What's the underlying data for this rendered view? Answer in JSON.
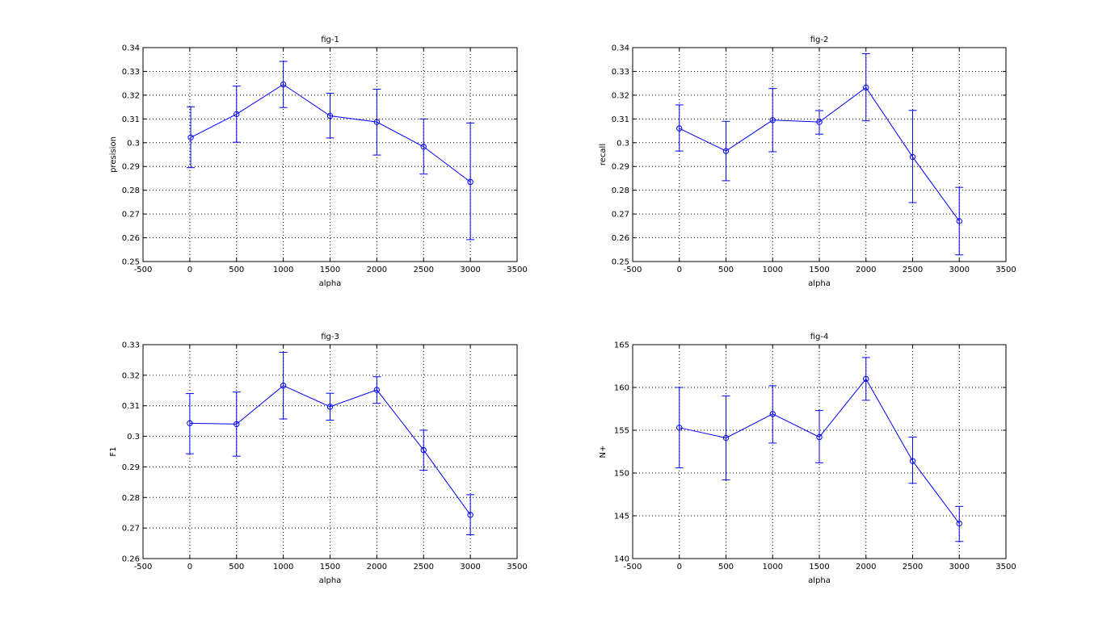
{
  "figure": {
    "line_color": "#0000ff",
    "axis_color": "#000000",
    "background": "#ffffff"
  },
  "chart_data": [
    {
      "type": "line",
      "title": "fig-1",
      "xlabel": "alpha",
      "ylabel": "presision",
      "xlim": [
        -500,
        3500
      ],
      "ylim": [
        0.25,
        0.34
      ],
      "xticks": [
        -500,
        0,
        500,
        1000,
        1500,
        2000,
        2500,
        3000,
        3500
      ],
      "yticks": [
        0.25,
        0.26,
        0.27,
        0.28,
        0.29,
        0.3,
        0.31,
        0.32,
        0.33,
        0.34
      ],
      "xticklabels": [
        "-500",
        "0",
        "500",
        "1000",
        "1500",
        "2000",
        "2500",
        "3000",
        "3500"
      ],
      "yticklabels": [
        "0.25",
        "0.26",
        "0.27",
        "0.28",
        "0.29",
        "0.3",
        "0.31",
        "0.32",
        "0.33",
        "0.34"
      ],
      "grid": true,
      "marker": "circle",
      "x": [
        10,
        500,
        1000,
        1500,
        2000,
        2500,
        3000
      ],
      "y": [
        0.3022,
        0.312,
        0.3245,
        0.3113,
        0.3087,
        0.2983,
        0.2835
      ],
      "err_low": [
        0.2895,
        0.3002,
        0.3148,
        0.302,
        0.2948,
        0.2868,
        0.2592
      ],
      "err_high": [
        0.3151,
        0.3238,
        0.3342,
        0.3208,
        0.3225,
        0.31,
        0.3083
      ]
    },
    {
      "type": "line",
      "title": "fig-2",
      "xlabel": "alpha",
      "ylabel": "recall",
      "xlim": [
        -500,
        3500
      ],
      "ylim": [
        0.25,
        0.34
      ],
      "xticks": [
        -500,
        0,
        500,
        1000,
        1500,
        2000,
        2500,
        3000,
        3500
      ],
      "yticks": [
        0.25,
        0.26,
        0.27,
        0.28,
        0.29,
        0.3,
        0.31,
        0.32,
        0.33,
        0.34
      ],
      "xticklabels": [
        "-500",
        "0",
        "500",
        "1000",
        "1500",
        "2000",
        "2500",
        "3000",
        "3500"
      ],
      "yticklabels": [
        "0.25",
        "0.26",
        "0.27",
        "0.28",
        "0.29",
        "0.3",
        "0.31",
        "0.32",
        "0.33",
        "0.34"
      ],
      "grid": true,
      "marker": "circle",
      "x": [
        0,
        500,
        1000,
        1500,
        2000,
        2500,
        3000
      ],
      "y": [
        0.306,
        0.2965,
        0.3095,
        0.3087,
        0.3232,
        0.294,
        0.267
      ],
      "err_low": [
        0.2965,
        0.284,
        0.2962,
        0.3036,
        0.3092,
        0.2748,
        0.2528
      ],
      "err_high": [
        0.3159,
        0.309,
        0.3228,
        0.3135,
        0.3375,
        0.3136,
        0.2812
      ]
    },
    {
      "type": "line",
      "title": "fig-3",
      "xlabel": "alpha",
      "ylabel": "F1",
      "xlim": [
        -500,
        3500
      ],
      "ylim": [
        0.26,
        0.33
      ],
      "xticks": [
        -500,
        0,
        500,
        1000,
        1500,
        2000,
        2500,
        3000,
        3500
      ],
      "yticks": [
        0.26,
        0.27,
        0.28,
        0.29,
        0.3,
        0.31,
        0.32,
        0.33
      ],
      "xticklabels": [
        "-500",
        "0",
        "500",
        "1000",
        "1500",
        "2000",
        "2500",
        "3000",
        "3500"
      ],
      "yticklabels": [
        "0.26",
        "0.27",
        "0.28",
        "0.29",
        "0.3",
        "0.31",
        "0.32",
        "0.33"
      ],
      "grid": true,
      "marker": "circle",
      "x": [
        0,
        500,
        1000,
        1500,
        2000,
        2500,
        3000
      ],
      "y": [
        0.3043,
        0.304,
        0.3166,
        0.3097,
        0.3152,
        0.2955,
        0.2743
      ],
      "err_low": [
        0.2943,
        0.2935,
        0.3057,
        0.3053,
        0.3108,
        0.2889,
        0.2678
      ],
      "err_high": [
        0.314,
        0.3145,
        0.3275,
        0.3141,
        0.3195,
        0.302,
        0.2809
      ]
    },
    {
      "type": "line",
      "title": "fig-4",
      "xlabel": "alpha",
      "ylabel": "N+",
      "xlim": [
        -500,
        3500
      ],
      "ylim": [
        140,
        165
      ],
      "xticks": [
        -500,
        0,
        500,
        1000,
        1500,
        2000,
        2500,
        3000,
        3500
      ],
      "yticks": [
        140,
        145,
        150,
        155,
        160,
        165
      ],
      "xticklabels": [
        "-500",
        "0",
        "500",
        "1000",
        "1500",
        "2000",
        "2500",
        "3000",
        "3500"
      ],
      "yticklabels": [
        "140",
        "145",
        "150",
        "155",
        "160",
        "165"
      ],
      "grid": true,
      "marker": "circle",
      "x": [
        0,
        500,
        1000,
        1500,
        2000,
        2500,
        3000
      ],
      "y": [
        155.3,
        154.1,
        156.9,
        154.2,
        161.0,
        151.4,
        144.1
      ],
      "err_low": [
        150.6,
        149.2,
        153.5,
        151.2,
        158.5,
        148.8,
        142.0
      ],
      "err_high": [
        160.0,
        159.0,
        160.2,
        157.3,
        163.5,
        154.2,
        146.1
      ]
    }
  ]
}
